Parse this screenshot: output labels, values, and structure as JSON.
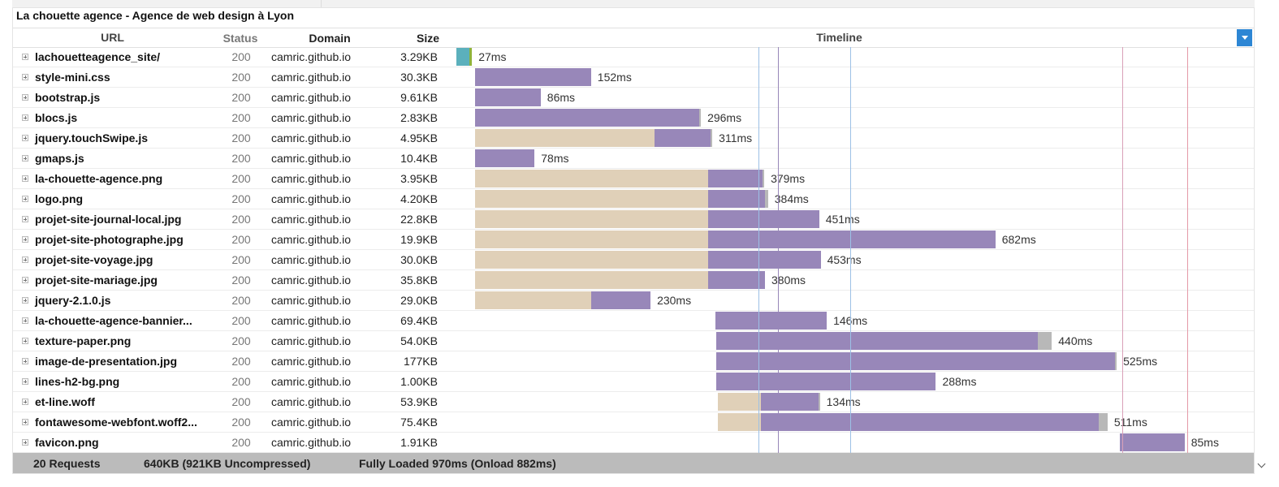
{
  "page_title": "La chouette agence - Agence de web design à Lyon",
  "columns": {
    "url": "URL",
    "status": "Status",
    "domain": "Domain",
    "size": "Size",
    "timeline": "Timeline"
  },
  "requests": [
    {
      "name": "lachouetteagence_site/",
      "status": "200",
      "domain": "camric.github.io",
      "size": "3.29KB",
      "duration": "27ms",
      "timing_ms": {
        "start": -25,
        "wait": 0,
        "receive": 0,
        "blocked_dns": 18,
        "connect": 3,
        "tail": 0
      }
    },
    {
      "name": "style-mini.css",
      "status": "200",
      "domain": "camric.github.io",
      "size": "30.3KB",
      "duration": "152ms",
      "timing_ms": {
        "start": 0,
        "wait": 0,
        "receive": 152,
        "tail": 0
      }
    },
    {
      "name": "bootstrap.js",
      "status": "200",
      "domain": "camric.github.io",
      "size": "9.61KB",
      "duration": "86ms",
      "timing_ms": {
        "start": 0,
        "wait": 0,
        "receive": 86,
        "tail": 0
      }
    },
    {
      "name": "blocs.js",
      "status": "200",
      "domain": "camric.github.io",
      "size": "2.83KB",
      "duration": "296ms",
      "timing_ms": {
        "start": 0,
        "wait": 0,
        "receive": 294,
        "tail": 2
      }
    },
    {
      "name": "jquery.touchSwipe.js",
      "status": "200",
      "domain": "camric.github.io",
      "size": "4.95KB",
      "duration": "311ms",
      "timing_ms": {
        "start": 0,
        "wait": 235,
        "receive": 74,
        "tail": 2
      }
    },
    {
      "name": "gmaps.js",
      "status": "200",
      "domain": "camric.github.io",
      "size": "10.4KB",
      "duration": "78ms",
      "timing_ms": {
        "start": 0,
        "wait": 0,
        "receive": 78,
        "tail": 0
      }
    },
    {
      "name": "la-chouette-agence.png",
      "status": "200",
      "domain": "camric.github.io",
      "size": "3.95KB",
      "duration": "379ms",
      "timing_ms": {
        "start": 0,
        "wait": 306,
        "receive": 71,
        "tail": 2
      }
    },
    {
      "name": "logo.png",
      "status": "200",
      "domain": "camric.github.io",
      "size": "4.20KB",
      "duration": "384ms",
      "timing_ms": {
        "start": 0,
        "wait": 306,
        "receive": 74,
        "tail": 4
      }
    },
    {
      "name": "projet-site-journal-local.jpg",
      "status": "200",
      "domain": "camric.github.io",
      "size": "22.8KB",
      "duration": "451ms",
      "timing_ms": {
        "start": 0,
        "wait": 306,
        "receive": 145,
        "tail": 0
      }
    },
    {
      "name": "projet-site-photographe.jpg",
      "status": "200",
      "domain": "camric.github.io",
      "size": "19.9KB",
      "duration": "682ms",
      "timing_ms": {
        "start": 0,
        "wait": 306,
        "receive": 376,
        "tail": 0
      }
    },
    {
      "name": "projet-site-voyage.jpg",
      "status": "200",
      "domain": "camric.github.io",
      "size": "30.0KB",
      "duration": "453ms",
      "timing_ms": {
        "start": 0,
        "wait": 306,
        "receive": 147,
        "tail": 0
      }
    },
    {
      "name": "projet-site-mariage.jpg",
      "status": "200",
      "domain": "camric.github.io",
      "size": "35.8KB",
      "duration": "380ms",
      "timing_ms": {
        "start": 0,
        "wait": 306,
        "receive": 74,
        "tail": 0
      }
    },
    {
      "name": "jquery-2.1.0.js",
      "status": "200",
      "domain": "camric.github.io",
      "size": "29.0KB",
      "duration": "230ms",
      "timing_ms": {
        "start": 0,
        "wait": 152,
        "receive": 78,
        "tail": 0
      }
    },
    {
      "name": "la-chouette-agence-bannier...",
      "status": "200",
      "domain": "camric.github.io",
      "size": "69.4KB",
      "duration": "146ms",
      "timing_ms": {
        "start": 315,
        "wait": 0,
        "receive": 146,
        "tail": 0
      }
    },
    {
      "name": "texture-paper.png",
      "status": "200",
      "domain": "camric.github.io",
      "size": "54.0KB",
      "duration": "440ms",
      "timing_ms": {
        "start": 316,
        "wait": 0,
        "receive": 422,
        "tail": 18
      }
    },
    {
      "name": "image-de-presentation.jpg",
      "status": "200",
      "domain": "camric.github.io",
      "size": "177KB",
      "duration": "525ms",
      "timing_ms": {
        "start": 316,
        "wait": 0,
        "receive": 523,
        "tail": 2
      }
    },
    {
      "name": "lines-h2-bg.png",
      "status": "200",
      "domain": "camric.github.io",
      "size": "1.00KB",
      "duration": "288ms",
      "timing_ms": {
        "start": 316,
        "wait": 0,
        "receive": 288,
        "tail": 0
      }
    },
    {
      "name": "et-line.woff",
      "status": "200",
      "domain": "camric.github.io",
      "size": "53.9KB",
      "duration": "134ms",
      "timing_ms": {
        "start": 318,
        "wait": 57,
        "receive": 75,
        "tail": 2
      }
    },
    {
      "name": "fontawesome-webfont.woff2...",
      "status": "200",
      "domain": "camric.github.io",
      "size": "75.4KB",
      "duration": "511ms",
      "timing_ms": {
        "start": 318,
        "wait": 57,
        "receive": 442,
        "tail": 12
      }
    },
    {
      "name": "favicon.png",
      "status": "200",
      "domain": "camric.github.io",
      "size": "1.91KB",
      "duration": "85ms",
      "timing_ms": {
        "start": 845,
        "wait": 0,
        "receive": 85,
        "tail": 0
      }
    }
  ],
  "timeline_markers_ms": [
    {
      "at": 372,
      "color": "#9cc0e6"
    },
    {
      "at": 397,
      "color": "#9887b9"
    },
    {
      "at": 492,
      "color": "#9cc0e6"
    },
    {
      "at": 848,
      "color": "#d9a0b8"
    },
    {
      "at": 933,
      "color": "#e49aa8"
    }
  ],
  "footer": {
    "requests": "20 Requests",
    "size": "640KB  (921KB Uncompressed)",
    "loaded": "Fully Loaded 970ms  (Onload 882ms)"
  },
  "colors": {
    "wait": "#e0d0b8",
    "receive": "#9887b9",
    "tail": "#b8b8b8",
    "dns": "#5bb0bc",
    "connect": "#8fb33a"
  }
}
